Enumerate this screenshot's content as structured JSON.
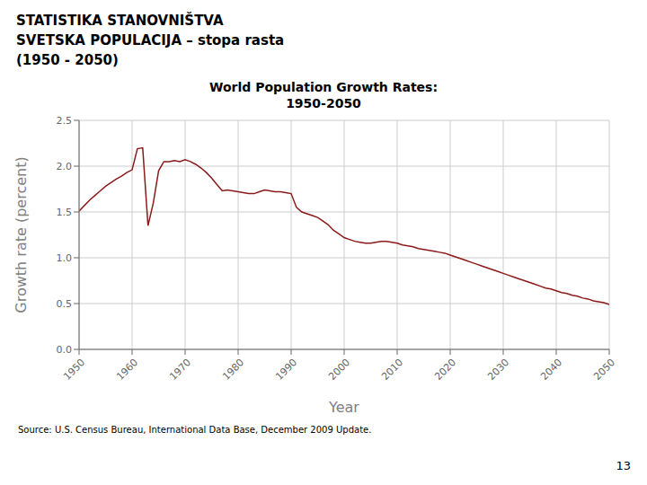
{
  "chart_data": {
    "type": "line",
    "title": "World Population Growth Rates:\n1950-2050",
    "annotations": [
      "STATISTIKA STANOVNIŠTVA",
      "SVETSKA POPULACIJA – stopa rasta",
      "(1950 - 2050)",
      "Source: U.S. Census Bureau, International Data Base, December 2009 Update.",
      "13"
    ],
    "x_label": "Year",
    "y_label": "Growth rate (percent)",
    "color": "#8b1a1a",
    "grid": true,
    "xlim": [
      1950,
      2050
    ],
    "xticks": [
      1950,
      1960,
      1970,
      1980,
      1990,
      2000,
      2010,
      2020,
      2030,
      2040,
      2050
    ],
    "ylim": [
      0.0,
      2.5
    ],
    "yticks": [
      {
        "value": 0,
        "label": "0.0"
      },
      0.5,
      {
        "value": 1,
        "label": "1.0"
      },
      1.5,
      {
        "value": 2,
        "label": "2.0"
      },
      2.5
    ],
    "x": [
      1950,
      1951,
      1952,
      1953,
      1954,
      1955,
      1956,
      1957,
      1958,
      1959,
      1960,
      1961,
      1962,
      1963,
      1964,
      1965,
      1966,
      1967,
      1968,
      1969,
      1970,
      1971,
      1972,
      1973,
      1974,
      1975,
      1976,
      1977,
      1978,
      1979,
      1980,
      1981,
      1982,
      1983,
      1984,
      1985,
      1986,
      1987,
      1988,
      1989,
      1990,
      1991,
      1992,
      1993,
      1994,
      1995,
      1996,
      1997,
      1998,
      1999,
      2000,
      2001,
      2002,
      2003,
      2004,
      2005,
      2006,
      2007,
      2008,
      2009,
      2010,
      2011,
      2012,
      2013,
      2014,
      2015,
      2016,
      2017,
      2018,
      2019,
      2020,
      2021,
      2022,
      2023,
      2024,
      2025,
      2026,
      2027,
      2028,
      2029,
      2030,
      2031,
      2032,
      2033,
      2034,
      2035,
      2036,
      2037,
      2038,
      2039,
      2040,
      2041,
      2042,
      2043,
      2044,
      2045,
      2046,
      2047,
      2048,
      2049,
      2050
    ],
    "values": [
      1.51,
      1.57,
      1.63,
      1.68,
      1.73,
      1.78,
      1.82,
      1.86,
      1.89,
      1.93,
      1.96,
      2.19,
      2.2,
      1.35,
      1.6,
      1.95,
      2.05,
      2.05,
      2.06,
      2.05,
      2.07,
      2.05,
      2.02,
      1.98,
      1.93,
      1.87,
      1.8,
      1.73,
      1.74,
      1.73,
      1.72,
      1.71,
      1.7,
      1.7,
      1.72,
      1.74,
      1.73,
      1.72,
      1.72,
      1.71,
      1.7,
      1.55,
      1.5,
      1.48,
      1.46,
      1.44,
      1.4,
      1.36,
      1.3,
      1.26,
      1.22,
      1.2,
      1.18,
      1.17,
      1.16,
      1.16,
      1.17,
      1.18,
      1.18,
      1.17,
      1.16,
      1.14,
      1.13,
      1.12,
      1.1,
      1.09,
      1.08,
      1.07,
      1.06,
      1.05,
      1.03,
      1.01,
      0.99,
      0.97,
      0.95,
      0.93,
      0.91,
      0.89,
      0.87,
      0.85,
      0.83,
      0.81,
      0.79,
      0.77,
      0.75,
      0.73,
      0.71,
      0.69,
      0.67,
      0.66,
      0.64,
      0.62,
      0.61,
      0.59,
      0.58,
      0.56,
      0.55,
      0.53,
      0.52,
      0.51,
      0.49
    ]
  }
}
